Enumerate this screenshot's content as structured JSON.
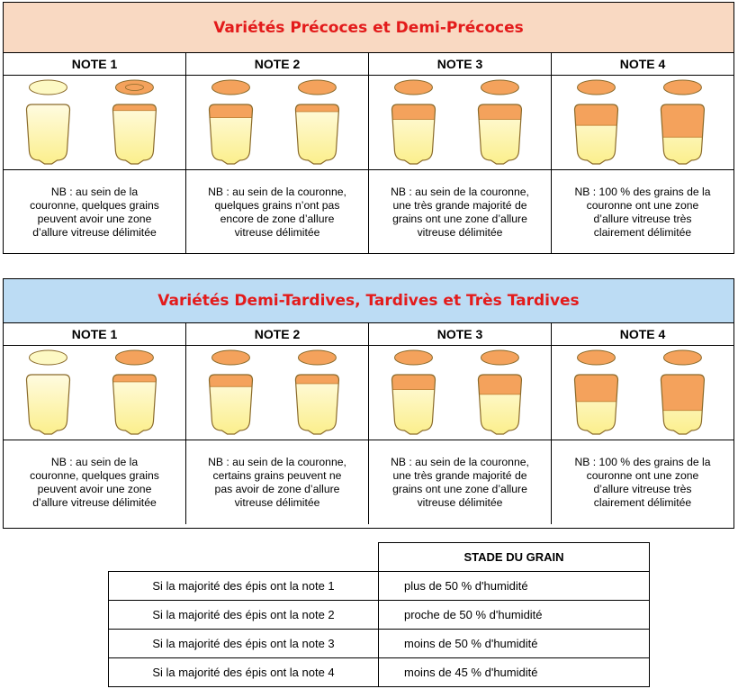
{
  "colors": {
    "white_zone": "#fdf9c4",
    "vitreous_zone": "#f4a25c",
    "outline": "#8a6a2a",
    "title_red": "#e31b1b"
  },
  "sections": [
    {
      "title": "Variétés Précoces et Demi-Précoces",
      "banner_color": "#f9d9c2",
      "notes": [
        {
          "label": "NOTE 1",
          "grains": [
            {
              "top": "pale",
              "vitreous_fraction": 0.0
            },
            {
              "top": "ring",
              "vitreous_fraction": 0.1
            }
          ],
          "text": [
            "NB : au sein de la",
            "couronne, quelques grains",
            "peuvent avoir une zone",
            "d’allure vitreuse délimitée"
          ]
        },
        {
          "label": "NOTE 2",
          "grains": [
            {
              "top": "orange",
              "vitreous_fraction": 0.22
            },
            {
              "top": "orange",
              "vitreous_fraction": 0.12
            }
          ],
          "text": [
            "NB : au sein de la couronne,",
            "quelques grains n’ont pas",
            "encore de zone d’allure",
            "vitreuse délimitée"
          ]
        },
        {
          "label": "NOTE 3",
          "grains": [
            {
              "top": "orange",
              "vitreous_fraction": 0.25
            },
            {
              "top": "orange",
              "vitreous_fraction": 0.25
            }
          ],
          "text": [
            "NB : au sein de la couronne,",
            "une très grande majorité de",
            "grains ont une zone d’allure",
            "vitreuse délimitée"
          ]
        },
        {
          "label": "NOTE 4",
          "grains": [
            {
              "top": "orange",
              "vitreous_fraction": 0.35
            },
            {
              "top": "orange",
              "vitreous_fraction": 0.55
            }
          ],
          "text": [
            "NB : 100 % des grains de la",
            "couronne ont une zone",
            "d’allure vitreuse très",
            "clairement délimitée"
          ]
        }
      ]
    },
    {
      "title": "Variétés Demi-Tardives, Tardives et Très Tardives",
      "banner_color": "#bcdcf4",
      "notes": [
        {
          "label": "NOTE 1",
          "grains": [
            {
              "top": "pale",
              "vitreous_fraction": 0.0
            },
            {
              "top": "orange",
              "vitreous_fraction": 0.12
            }
          ],
          "text": [
            "NB : au sein de la",
            "couronne, quelques grains",
            "peuvent avoir une zone",
            "d’allure vitreuse délimitée"
          ]
        },
        {
          "label": "NOTE 2",
          "grains": [
            {
              "top": "orange",
              "vitreous_fraction": 0.2
            },
            {
              "top": "orange",
              "vitreous_fraction": 0.15
            }
          ],
          "text": [
            "NB : au sein de la couronne,",
            "certains grains peuvent ne",
            "pas avoir de zone d’allure",
            "vitreuse délimitée"
          ]
        },
        {
          "label": "NOTE 3",
          "grains": [
            {
              "top": "orange",
              "vitreous_fraction": 0.25
            },
            {
              "top": "orange",
              "vitreous_fraction": 0.33
            }
          ],
          "text": [
            "NB : au sein de la couronne,",
            "une très grande majorité de",
            "grains ont une zone d’allure",
            "vitreuse délimitée"
          ]
        },
        {
          "label": "NOTE 4",
          "grains": [
            {
              "top": "orange",
              "vitreous_fraction": 0.45
            },
            {
              "top": "orange",
              "vitreous_fraction": 0.6
            }
          ],
          "text": [
            "NB : 100 % des grains de la",
            "couronne ont une zone",
            "d’allure vitreuse très",
            "clairement délimitée"
          ]
        }
      ]
    }
  ],
  "summary": {
    "header": "STADE DU GRAIN",
    "rows": [
      {
        "condition": "Si la majorité des épis ont la note 1",
        "stage": "plus de 50 % d'humidité"
      },
      {
        "condition": "Si la majorité des épis ont la note 2",
        "stage": "proche de 50 % d'humidité"
      },
      {
        "condition": "Si la majorité des épis ont la note 3",
        "stage": "moins de 50 % d'humidité"
      },
      {
        "condition": "Si la majorité des épis ont la note 4",
        "stage": "moins de 45 % d'humidité"
      }
    ]
  }
}
